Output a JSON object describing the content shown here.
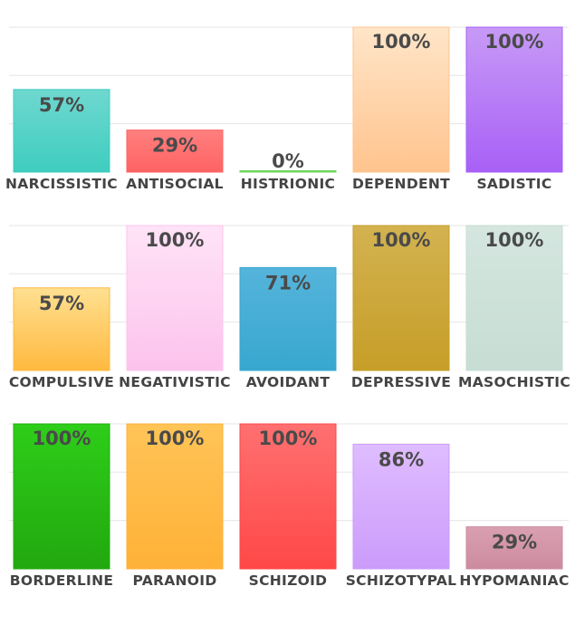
{
  "chart_data": {
    "type": "bar",
    "ylim": [
      0,
      100
    ],
    "grid": true,
    "value_suffix": "%",
    "rows": [
      {
        "bars": [
          {
            "label": "NARCISSISTIC",
            "value": 57,
            "color_top": "#6fd8cf",
            "color_bottom": "#3ecdbf"
          },
          {
            "label": "ANTISOCIAL",
            "value": 29,
            "color_top": "#ff7f7f",
            "color_bottom": "#ff6363"
          },
          {
            "label": "HISTRIONIC",
            "value": 0,
            "color_top": "#8ee07a",
            "color_bottom": "#6cd457"
          },
          {
            "label": "DEPENDENT",
            "value": 100,
            "color_top": "#ffe5c8",
            "color_bottom": "#ffc48e"
          },
          {
            "label": "SADISTIC",
            "value": 100,
            "color_top": "#c79af6",
            "color_bottom": "#a860f6"
          }
        ]
      },
      {
        "bars": [
          {
            "label": "COMPULSIVE",
            "value": 57,
            "color_top": "#ffe091",
            "color_bottom": "#ffb93f"
          },
          {
            "label": "NEGATIVISTIC",
            "value": 100,
            "color_top": "#ffe3f7",
            "color_bottom": "#fcc3ec"
          },
          {
            "label": "AVOIDANT",
            "value": 71,
            "color_top": "#55b4db",
            "color_bottom": "#38a7cf"
          },
          {
            "label": "DEPRESSIVE",
            "value": 100,
            "color_top": "#d3b250",
            "color_bottom": "#c69e28"
          },
          {
            "label": "MASOCHISTIC",
            "value": 100,
            "color_top": "#d4e6df",
            "color_bottom": "#c7ddd3"
          }
        ]
      },
      {
        "bars": [
          {
            "label": "BORDERLINE",
            "value": 100,
            "color_top": "#2ece19",
            "color_bottom": "#22a80f"
          },
          {
            "label": "PARANOID",
            "value": 100,
            "color_top": "#ffc457",
            "color_bottom": "#ffb137"
          },
          {
            "label": "SCHIZOID",
            "value": 100,
            "color_top": "#ff7070",
            "color_bottom": "#ff4848"
          },
          {
            "label": "SCHIZOTYPAL",
            "value": 86,
            "color_top": "#dfbcff",
            "color_bottom": "#cb9cfb"
          },
          {
            "label": "HYPOMANIAC",
            "value": 29,
            "color_top": "#d9a0b1",
            "color_bottom": "#cc8b9f"
          }
        ]
      }
    ]
  }
}
